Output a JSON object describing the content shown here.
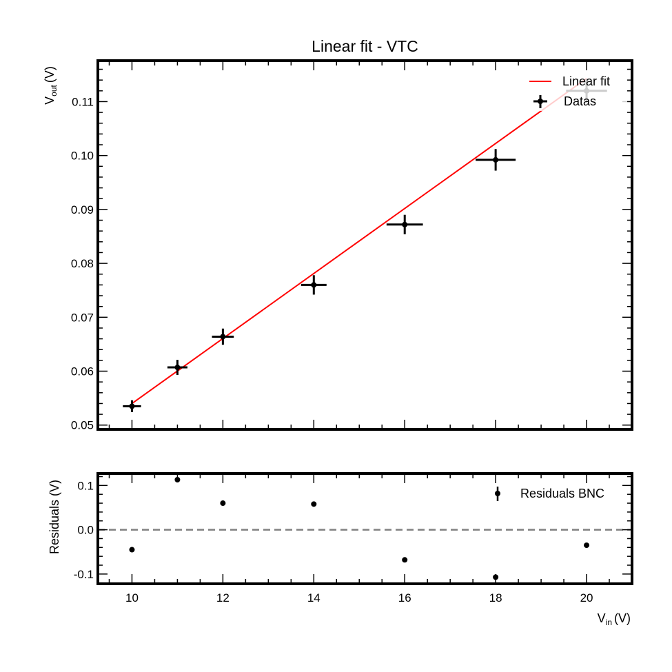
{
  "chart_data": [
    {
      "type": "scatter",
      "title": "Linear fit - VTC",
      "ylabel": {
        "main": "V",
        "sub": "out",
        "unit": "(V)"
      },
      "xlim": [
        9.25,
        21.0
      ],
      "ylim": [
        0.0492,
        0.1176
      ],
      "grid": false,
      "legend_position": "top-right",
      "x_ticks": [
        10,
        12,
        14,
        16,
        18,
        20
      ],
      "y_ticks": [
        0.05,
        0.06,
        0.07,
        0.08,
        0.09,
        0.1,
        0.11
      ],
      "y_tick_labels": [
        "0.05",
        "0.06",
        "0.07",
        "0.08",
        "0.09",
        "0.10",
        "0.11"
      ],
      "series": [
        {
          "name": "Linear fit",
          "kind": "line",
          "color": "#ff0000",
          "x": [
            10,
            20
          ],
          "y": [
            0.054,
            0.1143
          ]
        },
        {
          "name": "Datas",
          "kind": "errorbar",
          "color": "#000000",
          "points": [
            {
              "x": 10,
              "y": 0.0535,
              "xerr": 0.2,
              "yerr": 0.0011
            },
            {
              "x": 11,
              "y": 0.0607,
              "xerr": 0.22,
              "yerr": 0.0014
            },
            {
              "x": 12,
              "y": 0.0664,
              "xerr": 0.24,
              "yerr": 0.0015
            },
            {
              "x": 14,
              "y": 0.076,
              "xerr": 0.28,
              "yerr": 0.0018
            },
            {
              "x": 16,
              "y": 0.0872,
              "xerr": 0.4,
              "yerr": 0.0018
            },
            {
              "x": 18,
              "y": 0.0992,
              "xerr": 0.44,
              "yerr": 0.002
            },
            {
              "x": 20,
              "y": 0.112,
              "xerr": 0.45,
              "yerr": 0.0022
            }
          ]
        }
      ]
    },
    {
      "type": "scatter",
      "xlabel": {
        "main": "V",
        "sub": "in",
        "unit": "(V)"
      },
      "ylabel": "Residuals (V)",
      "xlim": [
        9.25,
        21.0
      ],
      "ylim": [
        -0.122,
        0.127
      ],
      "grid": false,
      "legend_position": "top-right",
      "x_ticks": [
        10,
        12,
        14,
        16,
        18,
        20
      ],
      "x_tick_labels": [
        "10",
        "12",
        "14",
        "16",
        "18",
        "20"
      ],
      "y_ticks": [
        -0.1,
        0.0,
        0.1
      ],
      "y_tick_labels": [
        "-0.1",
        "0.0",
        "0.1"
      ],
      "reference_line": {
        "y": 0.0,
        "style": "dashed",
        "color": "#808080"
      },
      "series": [
        {
          "name": "Residuals BNC",
          "kind": "errorbar",
          "color": "#000000",
          "points": [
            {
              "x": 10,
              "y": -0.045
            },
            {
              "x": 11,
              "y": 0.113
            },
            {
              "x": 12,
              "y": 0.06
            },
            {
              "x": 14,
              "y": 0.058
            },
            {
              "x": 16,
              "y": -0.068
            },
            {
              "x": 18,
              "y": -0.107
            },
            {
              "x": 20,
              "y": -0.035
            }
          ]
        }
      ]
    }
  ]
}
